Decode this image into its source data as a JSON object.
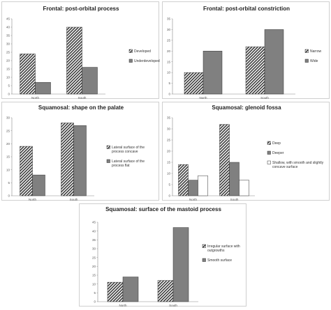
{
  "colors": {
    "bar_hatched": "#3a3a3a",
    "bar_gray": "#808080",
    "bar_white": "#ffffff",
    "axis": "#888888",
    "gridless": true
  },
  "chart_data": [
    {
      "type": "bar",
      "title": "Frontal: post-orbital process",
      "categories": [
        "North",
        "South"
      ],
      "ylim": [
        0,
        45
      ],
      "yticks": [
        0,
        5,
        10,
        15,
        20,
        25,
        30,
        35,
        40,
        45
      ],
      "series": [
        {
          "name": "Developed",
          "values": [
            24,
            40
          ],
          "style": "hatched"
        },
        {
          "name": "Underdeveloped",
          "values": [
            7,
            16
          ],
          "style": "gray"
        }
      ],
      "legend": "right",
      "grid": false
    },
    {
      "type": "bar",
      "title": "Frontal: post-orbital constriction",
      "categories": [
        "North",
        "South"
      ],
      "ylim": [
        0,
        35
      ],
      "yticks": [
        0,
        5,
        10,
        15,
        20,
        25,
        30,
        35
      ],
      "series": [
        {
          "name": "Narrow",
          "values": [
            10,
            22
          ],
          "style": "hatched"
        },
        {
          "name": "Wide",
          "values": [
            20,
            30
          ],
          "style": "gray"
        }
      ],
      "legend": "right",
      "grid": false
    },
    {
      "type": "bar",
      "title": "Squamosal: shape on the palate",
      "categories": [
        "North",
        "South"
      ],
      "ylim": [
        0,
        30
      ],
      "yticks": [
        0,
        5,
        10,
        15,
        20,
        25,
        30
      ],
      "series": [
        {
          "name": "Lateral surface of the process concave",
          "values": [
            19,
            28
          ],
          "style": "hatched"
        },
        {
          "name": "Lateral surface of the process flat",
          "values": [
            8,
            27
          ],
          "style": "gray"
        }
      ],
      "legend": "right",
      "grid": false
    },
    {
      "type": "bar",
      "title": "Squamosal: glenoid fossa",
      "categories": [
        "North",
        "South"
      ],
      "ylim": [
        0,
        35
      ],
      "yticks": [
        0,
        5,
        10,
        15,
        20,
        25,
        30,
        35
      ],
      "series": [
        {
          "name": "Deep",
          "values": [
            14,
            32
          ],
          "style": "hatched"
        },
        {
          "name": "Deeper",
          "values": [
            7,
            15
          ],
          "style": "gray"
        },
        {
          "name": "Shallow, with smooth and slightly concave surface",
          "values": [
            9,
            7
          ],
          "style": "white"
        }
      ],
      "legend": "right",
      "grid": false
    },
    {
      "type": "bar",
      "title": "Squamosal: surface of the mastoid process",
      "categories": [
        "North",
        "South"
      ],
      "ylim": [
        0,
        45
      ],
      "yticks": [
        0,
        5,
        10,
        15,
        20,
        25,
        30,
        35,
        40,
        45
      ],
      "series": [
        {
          "name": "Irregular surface with outgrowths",
          "values": [
            11,
            12
          ],
          "style": "hatched"
        },
        {
          "name": "Smooth surface",
          "values": [
            14,
            42
          ],
          "style": "gray"
        }
      ],
      "legend": "right",
      "grid": false
    }
  ]
}
